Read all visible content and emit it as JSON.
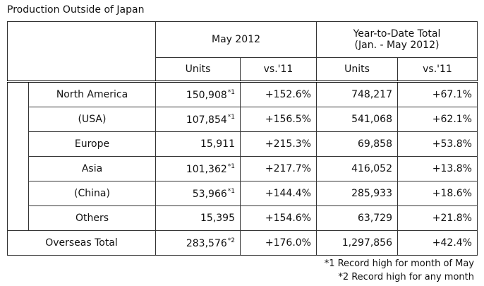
{
  "title": "Production Outside of Japan",
  "table": {
    "header": {
      "period": "May 2012",
      "ytd": "Year-to-Date Total",
      "ytd_range": "(Jan. - May 2012)",
      "columns": [
        "Units",
        "vs.'11",
        "Units",
        "vs.'11"
      ]
    },
    "rows": [
      {
        "region": "North America",
        "units": "150,908",
        "note": "*1",
        "vs": "+152.6%",
        "ytd_units": "748,217",
        "ytd_vs": "+67.1%"
      },
      {
        "region": "(USA)",
        "units": "107,854",
        "note": "*1",
        "vs": "+156.5%",
        "ytd_units": "541,068",
        "ytd_vs": "+62.1%"
      },
      {
        "region": "Europe",
        "units": "15,911",
        "vs": "+215.3%",
        "ytd_units": "69,858",
        "ytd_vs": "+53.8%"
      },
      {
        "region": "Asia",
        "units": "101,362",
        "note": "*1",
        "vs": "+217.7%",
        "ytd_units": "416,052",
        "ytd_vs": "+13.8%"
      },
      {
        "region": "(China)",
        "units": "53,966",
        "note": "*1",
        "vs": "+144.4%",
        "ytd_units": "285,933",
        "ytd_vs": "+18.6%"
      },
      {
        "region": "Others",
        "units": "15,395",
        "vs": "+154.6%",
        "ytd_units": "63,729",
        "ytd_vs": "+21.8%"
      },
      {
        "region": "Overseas Total",
        "units": "283,576",
        "note": "*2",
        "vs": "+176.0%",
        "ytd_units": "1,297,856",
        "ytd_vs": "+42.4%"
      }
    ]
  },
  "footnotes": [
    "*1 Record high for month of May",
    "*2 Record high for any month"
  ]
}
